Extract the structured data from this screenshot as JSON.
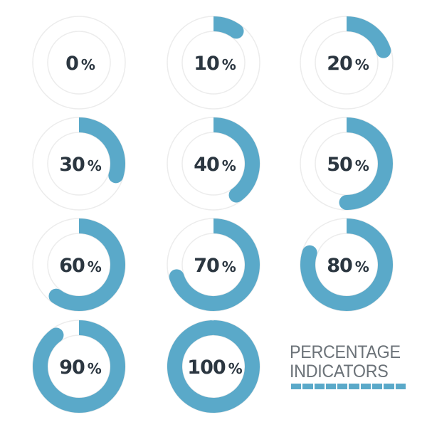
{
  "accent_color": "#5aa9c9",
  "track_color": "#ececec",
  "text_color": "#2b3640",
  "indicators": [
    {
      "value": 0,
      "label": "0",
      "unit": "%"
    },
    {
      "value": 10,
      "label": "10",
      "unit": "%"
    },
    {
      "value": 20,
      "label": "20",
      "unit": "%"
    },
    {
      "value": 30,
      "label": "30",
      "unit": "%"
    },
    {
      "value": 40,
      "label": "40",
      "unit": "%"
    },
    {
      "value": 50,
      "label": "50",
      "unit": "%"
    },
    {
      "value": 60,
      "label": "60",
      "unit": "%"
    },
    {
      "value": 70,
      "label": "70",
      "unit": "%"
    },
    {
      "value": 80,
      "label": "80",
      "unit": "%"
    },
    {
      "value": 90,
      "label": "90",
      "unit": "%"
    },
    {
      "value": 100,
      "label": "100",
      "unit": "%"
    }
  ],
  "title": {
    "line1": "PERCENTAGE",
    "line2": "INDICATORS",
    "bar_segments": 10
  }
}
